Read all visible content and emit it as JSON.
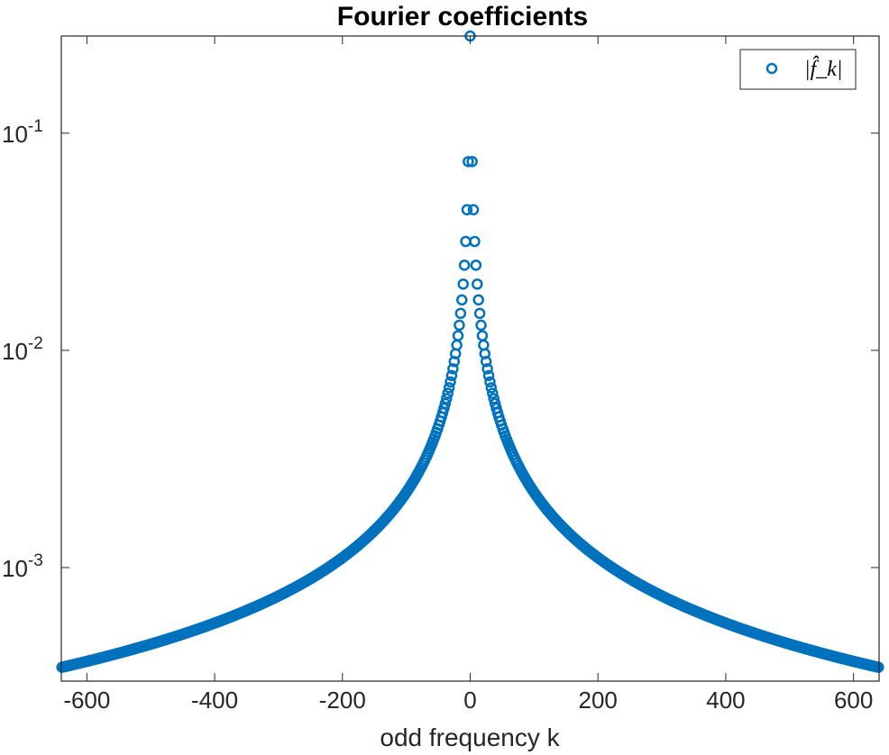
{
  "chart_data": {
    "type": "scatter",
    "title": "Fourier coefficients",
    "xlabel": "odd frequency k",
    "ylabel": "",
    "xlim": [
      -640,
      640
    ],
    "ylim": [
      0.0003,
      0.28
    ],
    "yscale": "log",
    "grid": false,
    "legend": {
      "position": "top-right",
      "entries": [
        "|f̂_k|"
      ]
    },
    "marker": "circle-open",
    "colors": {
      "series": "#0072BD",
      "axes": "#262626",
      "background": "#ffffff"
    },
    "x_ticks": [
      "-600",
      "-400",
      "-200",
      "0",
      "200",
      "400",
      "600"
    ],
    "x_tick_values": [
      -600,
      -400,
      -200,
      0,
      200,
      400,
      600
    ],
    "y_ticks": [
      {
        "value": 0.1,
        "base": "10",
        "exp": "-1"
      },
      {
        "value": 0.01,
        "base": "10",
        "exp": "-2"
      },
      {
        "value": 0.001,
        "base": "10",
        "exp": "-3"
      }
    ],
    "series": [
      {
        "name": "|f̂_k|",
        "k_min": -639,
        "k_max": 639,
        "k_step": 2,
        "center_value": 0.28,
        "model": "|f̂_k| ≈ 0.19 / |k| for odd k, 0.28 at k = 0",
        "sample_points": [
          {
            "x": 0,
            "y": 0.28
          },
          {
            "x": -3,
            "y": 0.074
          },
          {
            "x": 3,
            "y": 0.074
          },
          {
            "x": -5,
            "y": 0.042
          },
          {
            "x": 5,
            "y": 0.042
          },
          {
            "x": -7,
            "y": 0.03
          },
          {
            "x": 7,
            "y": 0.03
          },
          {
            "x": -9,
            "y": 0.023
          },
          {
            "x": 9,
            "y": 0.023
          },
          {
            "x": -200,
            "y": 0.00095
          },
          {
            "x": 200,
            "y": 0.00095
          },
          {
            "x": -400,
            "y": 0.00048
          },
          {
            "x": 400,
            "y": 0.00048
          },
          {
            "x": -639,
            "y": 0.0003
          },
          {
            "x": 639,
            "y": 0.0003
          }
        ]
      }
    ]
  }
}
